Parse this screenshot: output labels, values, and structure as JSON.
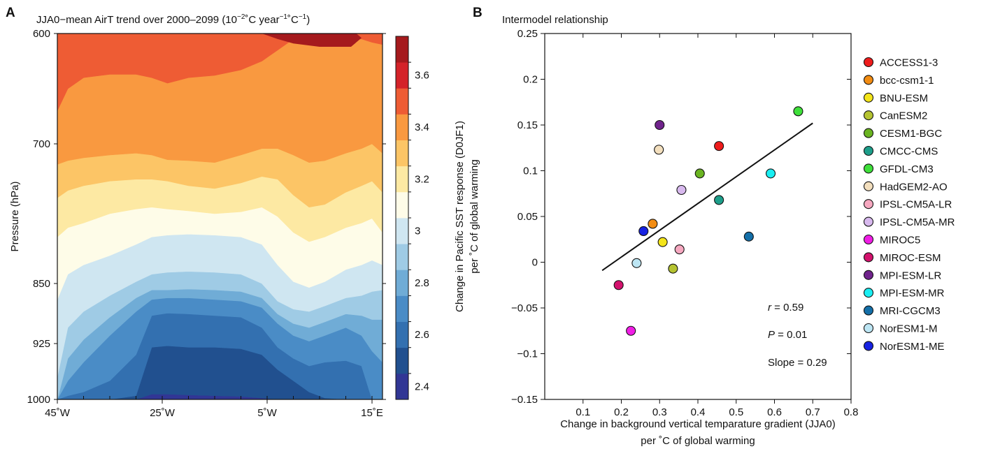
{
  "panel_a": {
    "letter": "A",
    "title": "JJA0−mean AirT trend over 2000–2099 (10",
    "title_exp1": "−2",
    "title_mid": "˚C year",
    "title_exp2": "−1",
    "title_mid2": "˚C",
    "title_exp3": "−1",
    "title_end": ")",
    "ylabel": "Pressure (hPa)"
  },
  "panel_b": {
    "letter": "B",
    "title": "Intermodel relationship",
    "xlabel_line1": "Change in background vertical temparature gradient (JJA0)",
    "xlabel_line2": "per ˚C of global warming",
    "ylabel_line1": "Change in Pacific SST response (D0JF1)",
    "ylabel_line2": "per ˚C of global warming",
    "stat_r_sym": "r",
    "stat_r_val": " = 0.59",
    "stat_p_sym": "P",
    "stat_p_val": " = 0.01",
    "stat_slope": "Slope = 0.29"
  },
  "chart_data": [
    {
      "type": "heatmap",
      "title": "JJA0−mean AirT trend over 2000–2099 (10⁻² ˚C year⁻¹ ˚C⁻¹)",
      "ylabel": "Pressure (hPa)",
      "xlabel": "",
      "x_ticks": [
        "45˚W",
        "25˚W",
        "5˚W",
        "15˚E"
      ],
      "x_tick_values": [
        -45,
        -25,
        -5,
        15
      ],
      "xlim": [
        -45,
        17
      ],
      "y_ticks": [
        "600",
        "700",
        "850",
        "925",
        "1000"
      ],
      "y_tick_values": [
        600,
        700,
        850,
        925,
        1000
      ],
      "ylim": [
        1000,
        600
      ],
      "colorbar": {
        "levels": [
          2.4,
          2.5,
          2.6,
          2.7,
          2.8,
          2.9,
          3.0,
          3.1,
          3.2,
          3.3,
          3.4,
          3.5,
          3.6,
          3.7
        ],
        "colors": [
          "#313695",
          "#21508f",
          "#3370b0",
          "#4a8cc6",
          "#70acd6",
          "#9fcbe5",
          "#cfe6f1",
          "#fefce8",
          "#fde9a3",
          "#fcc566",
          "#f99940",
          "#ee5c34",
          "#d42329",
          "#a51a1d"
        ],
        "tick_labels": [
          "2.4",
          "2.6",
          "2.8",
          "3",
          "3.2",
          "3.4",
          "3.6"
        ]
      },
      "x_samples": [
        -45,
        -43,
        -40,
        -35,
        -30,
        -27,
        -24,
        -20,
        -15,
        -10,
        -6,
        -3,
        0,
        3,
        6,
        10,
        13,
        15,
        17
      ],
      "boundaries_hpa": [
        [
          1000,
          1000,
          1000,
          1000,
          1000,
          1000,
          1000,
          1000,
          1000,
          1000,
          1000,
          1000,
          1000,
          1000,
          1000,
          1000,
          1000,
          1000,
          1000
        ],
        [
          1000,
          1000,
          1000,
          1000,
          1000,
          993,
          993,
          994,
          995,
          996,
          998,
          1000,
          1000,
          1000,
          1000,
          1000,
          1000,
          1000,
          1000
        ],
        [
          1000,
          1000,
          1000,
          1000,
          995,
          930,
          928,
          930,
          930,
          932,
          940,
          960,
          975,
          990,
          998,
          1000,
          1000,
          1000,
          1000
        ],
        [
          1000,
          995,
          990,
          975,
          940,
          890,
          887,
          888,
          890,
          892,
          905,
          930,
          945,
          955,
          950,
          948,
          955,
          1000,
          1000
        ],
        [
          1000,
          975,
          950,
          915,
          885,
          870,
          868,
          868,
          870,
          872,
          880,
          900,
          915,
          922,
          915,
          905,
          915,
          935,
          950
        ],
        [
          1000,
          945,
          920,
          892,
          868,
          858,
          858,
          857,
          858,
          860,
          868,
          888,
          900,
          905,
          898,
          888,
          890,
          895,
          895
        ],
        [
          970,
          905,
          885,
          865,
          848,
          840,
          838,
          837,
          838,
          840,
          850,
          872,
          882,
          885,
          878,
          868,
          865,
          860,
          858
        ],
        [
          870,
          840,
          830,
          820,
          808,
          800,
          798,
          797,
          798,
          800,
          808,
          830,
          848,
          855,
          848,
          835,
          830,
          825,
          830
        ],
        [
          800,
          790,
          785,
          775,
          770,
          768,
          770,
          772,
          775,
          773,
          768,
          778,
          795,
          805,
          800,
          790,
          785,
          780,
          795
        ],
        [
          758,
          750,
          745,
          740,
          738,
          738,
          740,
          745,
          748,
          742,
          735,
          738,
          755,
          768,
          765,
          752,
          745,
          740,
          752
        ],
        [
          722,
          718,
          715,
          712,
          710,
          712,
          717,
          718,
          720,
          712,
          705,
          705,
          712,
          720,
          718,
          710,
          705,
          700,
          710
        ],
        [
          670,
          650,
          640,
          637,
          637,
          640,
          645,
          640,
          638,
          633,
          625,
          615,
          605,
          605,
          605,
          605,
          605,
          608,
          610
        ],
        [
          600,
          600,
          600,
          600,
          600,
          600,
          600,
          600,
          600,
          600,
          600,
          600,
          600,
          600,
          600,
          600,
          600,
          600,
          600
        ],
        [
          600,
          600,
          600,
          600,
          600,
          600,
          600,
          600,
          600,
          600,
          600,
          600,
          600,
          600,
          600,
          600,
          600,
          600,
          600
        ]
      ],
      "extra_blob": [
        [
          -6,
          600
        ],
        [
          -3,
          600
        ],
        [
          3,
          600
        ],
        [
          12,
          600
        ],
        [
          13,
          604
        ],
        [
          11,
          612
        ],
        [
          5,
          612
        ],
        [
          0,
          609
        ],
        [
          -3,
          605
        ]
      ]
    },
    {
      "type": "scatter",
      "title": "Intermodel relationship",
      "xlabel": "Change in background vertical temparature gradient (JJA0) per ˚C of global warming",
      "ylabel": "Change in Pacific SST response (D0JF1) per ˚C of global warming",
      "xlim": [
        0.0,
        0.8
      ],
      "ylim": [
        -0.15,
        0.25
      ],
      "x_ticks": [
        "0.1",
        "0.2",
        "0.3",
        "0.4",
        "0.5",
        "0.6",
        "0.7",
        "0.8"
      ],
      "x_tick_values": [
        0.1,
        0.2,
        0.3,
        0.4,
        0.5,
        0.6,
        0.7,
        0.8
      ],
      "y_ticks": [
        "−0.15",
        "−0.1",
        "−0.05",
        "0",
        "0.05",
        "0.1",
        "0.15",
        "0.2",
        "0.25"
      ],
      "y_tick_values": [
        -0.15,
        -0.1,
        -0.05,
        0,
        0.05,
        0.1,
        0.15,
        0.2,
        0.25
      ],
      "legend_position": "right",
      "grid": false,
      "fit_line": {
        "x": [
          0.15,
          0.7
        ],
        "y": [
          -0.009,
          0.152
        ]
      },
      "points": [
        {
          "name": "ACCESS1-3",
          "color": "#ee1c1c",
          "x": 0.455,
          "y": 0.127
        },
        {
          "name": "bcc-csm1-1",
          "color": "#f28c12",
          "x": 0.282,
          "y": 0.042
        },
        {
          "name": "BNU-ESM",
          "color": "#f4e51a",
          "x": 0.308,
          "y": 0.022
        },
        {
          "name": "CanESM2",
          "color": "#b5c331",
          "x": 0.335,
          "y": -0.007
        },
        {
          "name": "CESM1-BGC",
          "color": "#6ab421",
          "x": 0.405,
          "y": 0.097
        },
        {
          "name": "CMCC-CMS",
          "color": "#1d9e8a",
          "x": 0.455,
          "y": 0.068
        },
        {
          "name": "GFDL-CM3",
          "color": "#3fe03a",
          "x": 0.662,
          "y": 0.165
        },
        {
          "name": "HadGEM2-AO",
          "color": "#f3dfbe",
          "x": 0.298,
          "y": 0.123
        },
        {
          "name": "IPSL-CM5A-LR",
          "color": "#f6a8c0",
          "x": 0.352,
          "y": 0.014
        },
        {
          "name": "IPSL-CM5A-MR",
          "color": "#d8b9ee",
          "x": 0.357,
          "y": 0.079
        },
        {
          "name": "MIROC5",
          "color": "#f01ee5",
          "x": 0.225,
          "y": -0.075
        },
        {
          "name": "MIROC-ESM",
          "color": "#d3126d",
          "x": 0.193,
          "y": -0.025
        },
        {
          "name": "MPI-ESM-LR",
          "color": "#70238c",
          "x": 0.3,
          "y": 0.15
        },
        {
          "name": "MPI-ESM-MR",
          "color": "#1aeef2",
          "x": 0.59,
          "y": 0.097
        },
        {
          "name": "MRI-CGCM3",
          "color": "#146fa8",
          "x": 0.533,
          "y": 0.028
        },
        {
          "name": "NorESM1-M",
          "color": "#bde6f4",
          "x": 0.24,
          "y": -0.001
        },
        {
          "name": "NorESM1-ME",
          "color": "#1722e2",
          "x": 0.258,
          "y": 0.034
        }
      ],
      "annotations": [
        "r = 0.59",
        "P = 0.01",
        "Slope = 0.29"
      ]
    }
  ]
}
